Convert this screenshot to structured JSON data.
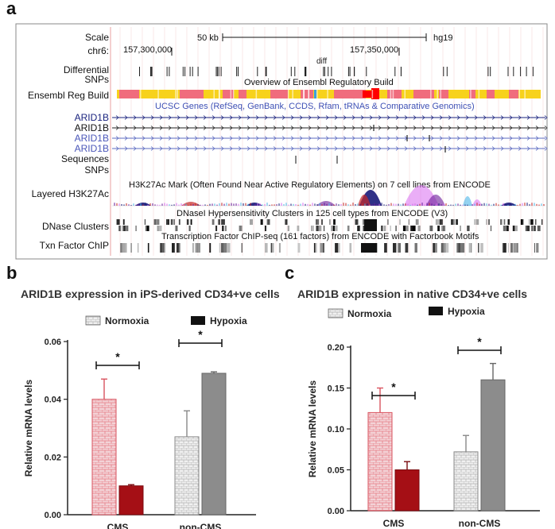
{
  "panel_a": {
    "letter": "a",
    "scale_label": "Scale",
    "scale_value": "50 kb",
    "assembly": "hg19",
    "chrom_label": "chr6:",
    "pos_left": "157,300,000",
    "pos_right": "157,350,000",
    "diff_label": "diff",
    "tracks": [
      {
        "label": "Differential SNPs"
      },
      {
        "label": "Ensembl Reg Build"
      },
      {
        "label": "ARID1B",
        "color": "#1a237e"
      },
      {
        "label": "ARID1B",
        "color": "#111111"
      },
      {
        "label": "ARID1B",
        "color": "#4a56b8"
      },
      {
        "label": "ARID1B",
        "color": "#4a56b8"
      },
      {
        "label": "Sequences"
      },
      {
        "label": "SNPs"
      },
      {
        "label": "Layered H3K27Ac"
      },
      {
        "label": "DNase Clusters"
      },
      {
        "label": "Txn Factor ChIP"
      }
    ],
    "overview_text": "Overview of Ensembl Regulatory Build",
    "genes_text": "UCSC Genes (RefSeq, GenBank, CCDS, Rfam, tRNAs & Comparative Genomics)",
    "h3k27_text": "H3K27Ac Mark (Often Found Near Active Regulatory Elements) on 7 cell lines from ENCODE",
    "dnase_text": "DNaseI Hypersensitivity Clusters in 125 cell types from ENCODE (V3)",
    "txn_text": "Transcription Factor ChIP-seq (161 factors) from ENCODE with Factorbook Motifs",
    "colors": {
      "reg_red": "#f06c7d",
      "reg_yellow": "#f7d21c",
      "gene_blue": "#3f51b5",
      "red_highlight": "#ff0000"
    }
  },
  "chart_data": [
    {
      "panel": "b",
      "type": "bar",
      "title": "ARID1B expression in iPS-derived CD34+ve cells",
      "ylabel": "Relative mRNA levels",
      "xlabel": "",
      "ylim": [
        0,
        0.06
      ],
      "yticks": [
        "0.00",
        "0.02",
        "0.04",
        "0.06"
      ],
      "yticks_values": [
        0,
        0.02,
        0.04,
        0.06
      ],
      "categories": [
        "CMS",
        "non-CMS"
      ],
      "legend": {
        "normoxia": "Normoxia",
        "hypoxia": "Hypoxia"
      },
      "series": [
        {
          "name": "Normoxia",
          "values": [
            0.04,
            0.027
          ],
          "errors": [
            0.007,
            0.009
          ]
        },
        {
          "name": "Hypoxia",
          "values": [
            0.01,
            0.049
          ],
          "errors": [
            0.0004,
            0.0005
          ]
        }
      ],
      "significance": [
        "*",
        "*"
      ]
    },
    {
      "panel": "c",
      "type": "bar",
      "title": "ARID1B expression in native CD34+ve cells",
      "ylabel": "Relative mRNA levels",
      "xlabel": "",
      "ylim": [
        0,
        0.2
      ],
      "yticks": [
        "0.00",
        "0.05",
        "0.10",
        "0.15",
        "0.20"
      ],
      "yticks_values": [
        0,
        0.05,
        0.1,
        0.15,
        0.2
      ],
      "categories": [
        "CMS",
        "non-CMS"
      ],
      "legend": {
        "normoxia": "Normoxia",
        "hypoxia": "Hypoxia"
      },
      "series": [
        {
          "name": "Normoxia",
          "values": [
            0.12,
            0.072
          ],
          "errors": [
            0.03,
            0.02
          ]
        },
        {
          "name": "Hypoxia",
          "values": [
            0.05,
            0.16
          ],
          "errors": [
            0.01,
            0.02
          ]
        }
      ],
      "significance": [
        "*",
        "*"
      ]
    }
  ]
}
